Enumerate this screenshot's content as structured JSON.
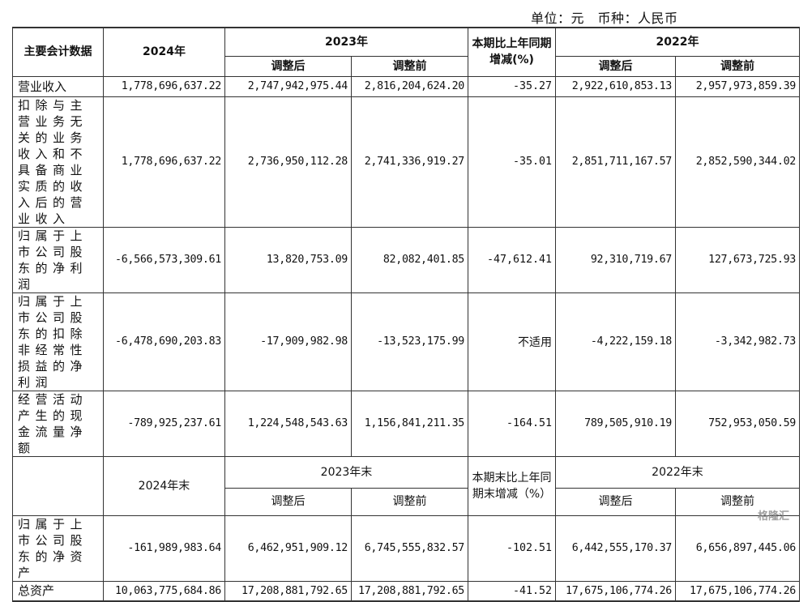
{
  "unit_line": "单位：元　币种：人民币",
  "header": {
    "label": "主要会计数据",
    "y2024": "2024年",
    "y2023": "2023年",
    "change": "本期比上年同期增减(%)",
    "y2022": "2022年",
    "adjusted_after": "调整后",
    "adjusted_before": "调整前"
  },
  "rows": [
    {
      "label": "营业收入",
      "v2024": "1,778,696,637.22",
      "v2023a": "2,747,942,975.44",
      "v2023b": "2,816,204,624.20",
      "chg": "-35.27",
      "v2022a": "2,922,610,853.13",
      "v2022b": "2,957,973,859.39"
    },
    {
      "label": "扣除与主营业务无关的业务收入和不具备商业实质的收入后的营业收入",
      "v2024": "1,778,696,637.22",
      "v2023a": "2,736,950,112.28",
      "v2023b": "2,741,336,919.27",
      "chg": "-35.01",
      "v2022a": "2,851,711,167.57",
      "v2022b": "2,852,590,344.02"
    },
    {
      "label": "归属于上市公司股东的净利润",
      "v2024": "-6,566,573,309.61",
      "v2023a": "13,820,753.09",
      "v2023b": "82,082,401.85",
      "chg": "-47,612.41",
      "v2022a": "92,310,719.67",
      "v2022b": "127,673,725.93"
    },
    {
      "label": "归属于上市公司股东的扣除非经常性损益的净利润",
      "v2024": "-6,478,690,203.83",
      "v2023a": "-17,909,982.98",
      "v2023b": "-13,523,175.99",
      "chg": "不适用",
      "v2022a": "-4,222,159.18",
      "v2022b": "-3,342,982.73"
    },
    {
      "label": "经营活动产生的现金流量净额",
      "v2024": "-789,925,237.61",
      "v2023a": "1,224,548,543.63",
      "v2023b": "1,156,841,211.35",
      "chg": "-164.51",
      "v2022a": "789,505,910.19",
      "v2022b": "752,953,050.59"
    }
  ],
  "header2": {
    "y2024": "2024年末",
    "y2023": "2023年末",
    "change": "本期末比上年同期末增减（%）",
    "y2022": "2022年末",
    "adjusted_after": "调整后",
    "adjusted_before": "调整前"
  },
  "rows2": [
    {
      "label": "归属于上市公司股东的净资产",
      "v2024": "-161,989,983.64",
      "v2023a": "6,462,951,909.12",
      "v2023b": "6,745,555,832.57",
      "chg": "-102.51",
      "v2022a": "6,442,555,170.37",
      "v2022b": "6,656,897,445.06"
    },
    {
      "label": "总资产",
      "v2024": "10,063,775,684.86",
      "v2023a": "17,208,881,792.65",
      "v2023b": "17,208,881,792.65",
      "chg": "-41.52",
      "v2022a": "17,675,106,774.26",
      "v2022b": "17,675,106,774.26"
    }
  ],
  "watermark": "格隆汇"
}
